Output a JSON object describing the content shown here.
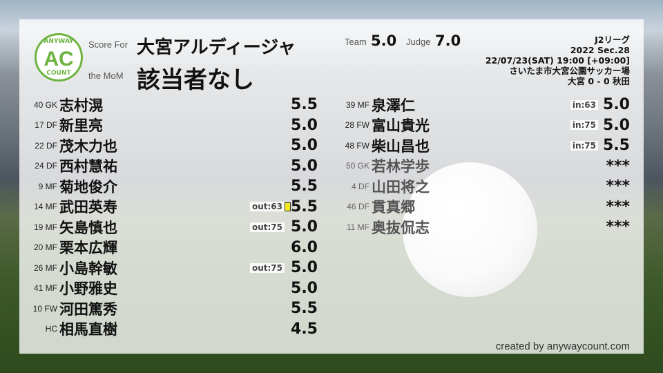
{
  "header": {
    "score_for_label": "Score For",
    "team_name": "大宮アルディージャ",
    "mom_label": "the MoM",
    "mom_value": "該当者なし",
    "team_label": "Team",
    "team_score": "5.0",
    "judge_label": "Judge",
    "judge_score": "7.0"
  },
  "logo": {
    "top": "ANYWAY",
    "center": "AC",
    "bottom": "COUNT",
    "color": "#6cb33f"
  },
  "match": {
    "league": "J2リーグ",
    "section": "2022 Sec.28",
    "datetime": "22/07/23(SAT) 19:00 [+09:00]",
    "venue": "さいたま市大宮公園サッカー場",
    "result": "大宮 0 - 0 秋田"
  },
  "starters": [
    {
      "num": "40",
      "pos": "GK",
      "name": "志村滉",
      "score": "5.5"
    },
    {
      "num": "17",
      "pos": "DF",
      "name": "新里亮",
      "score": "5.0"
    },
    {
      "num": "22",
      "pos": "DF",
      "name": "茂木力也",
      "score": "5.0"
    },
    {
      "num": "24",
      "pos": "DF",
      "name": "西村慧祐",
      "score": "5.0"
    },
    {
      "num": "9",
      "pos": "MF",
      "name": "菊地俊介",
      "score": "5.5"
    },
    {
      "num": "14",
      "pos": "MF",
      "name": "武田英寿",
      "score": "5.5",
      "sub": "out:63",
      "yellow_card": true
    },
    {
      "num": "19",
      "pos": "MF",
      "name": "矢島慎也",
      "score": "5.0",
      "sub": "out:75"
    },
    {
      "num": "20",
      "pos": "MF",
      "name": "栗本広輝",
      "score": "6.0"
    },
    {
      "num": "26",
      "pos": "MF",
      "name": "小島幹敏",
      "score": "5.0",
      "sub": "out:75"
    },
    {
      "num": "41",
      "pos": "MF",
      "name": "小野雅史",
      "score": "5.0"
    },
    {
      "num": "10",
      "pos": "FW",
      "name": "河田篤秀",
      "score": "5.5"
    },
    {
      "num": "",
      "pos": "HC",
      "name": "相馬直樹",
      "score": "4.5"
    }
  ],
  "subs": [
    {
      "num": "39",
      "pos": "MF",
      "name": "泉澤仁",
      "score": "5.0",
      "sub": "in:63"
    },
    {
      "num": "28",
      "pos": "FW",
      "name": "富山貴光",
      "score": "5.0",
      "sub": "in:75"
    },
    {
      "num": "48",
      "pos": "FW",
      "name": "柴山昌也",
      "score": "5.5",
      "sub": "in:75"
    },
    {
      "num": "50",
      "pos": "GK",
      "name": "若林学歩",
      "score": "***",
      "unused": true
    },
    {
      "num": "4",
      "pos": "DF",
      "name": "山田将之",
      "score": "***",
      "unused": true
    },
    {
      "num": "46",
      "pos": "DF",
      "name": "貫真郷",
      "score": "***",
      "unused": true
    },
    {
      "num": "11",
      "pos": "MF",
      "name": "奥抜侃志",
      "score": "***",
      "unused": true
    }
  ],
  "footer": "created by anywaycount.com"
}
